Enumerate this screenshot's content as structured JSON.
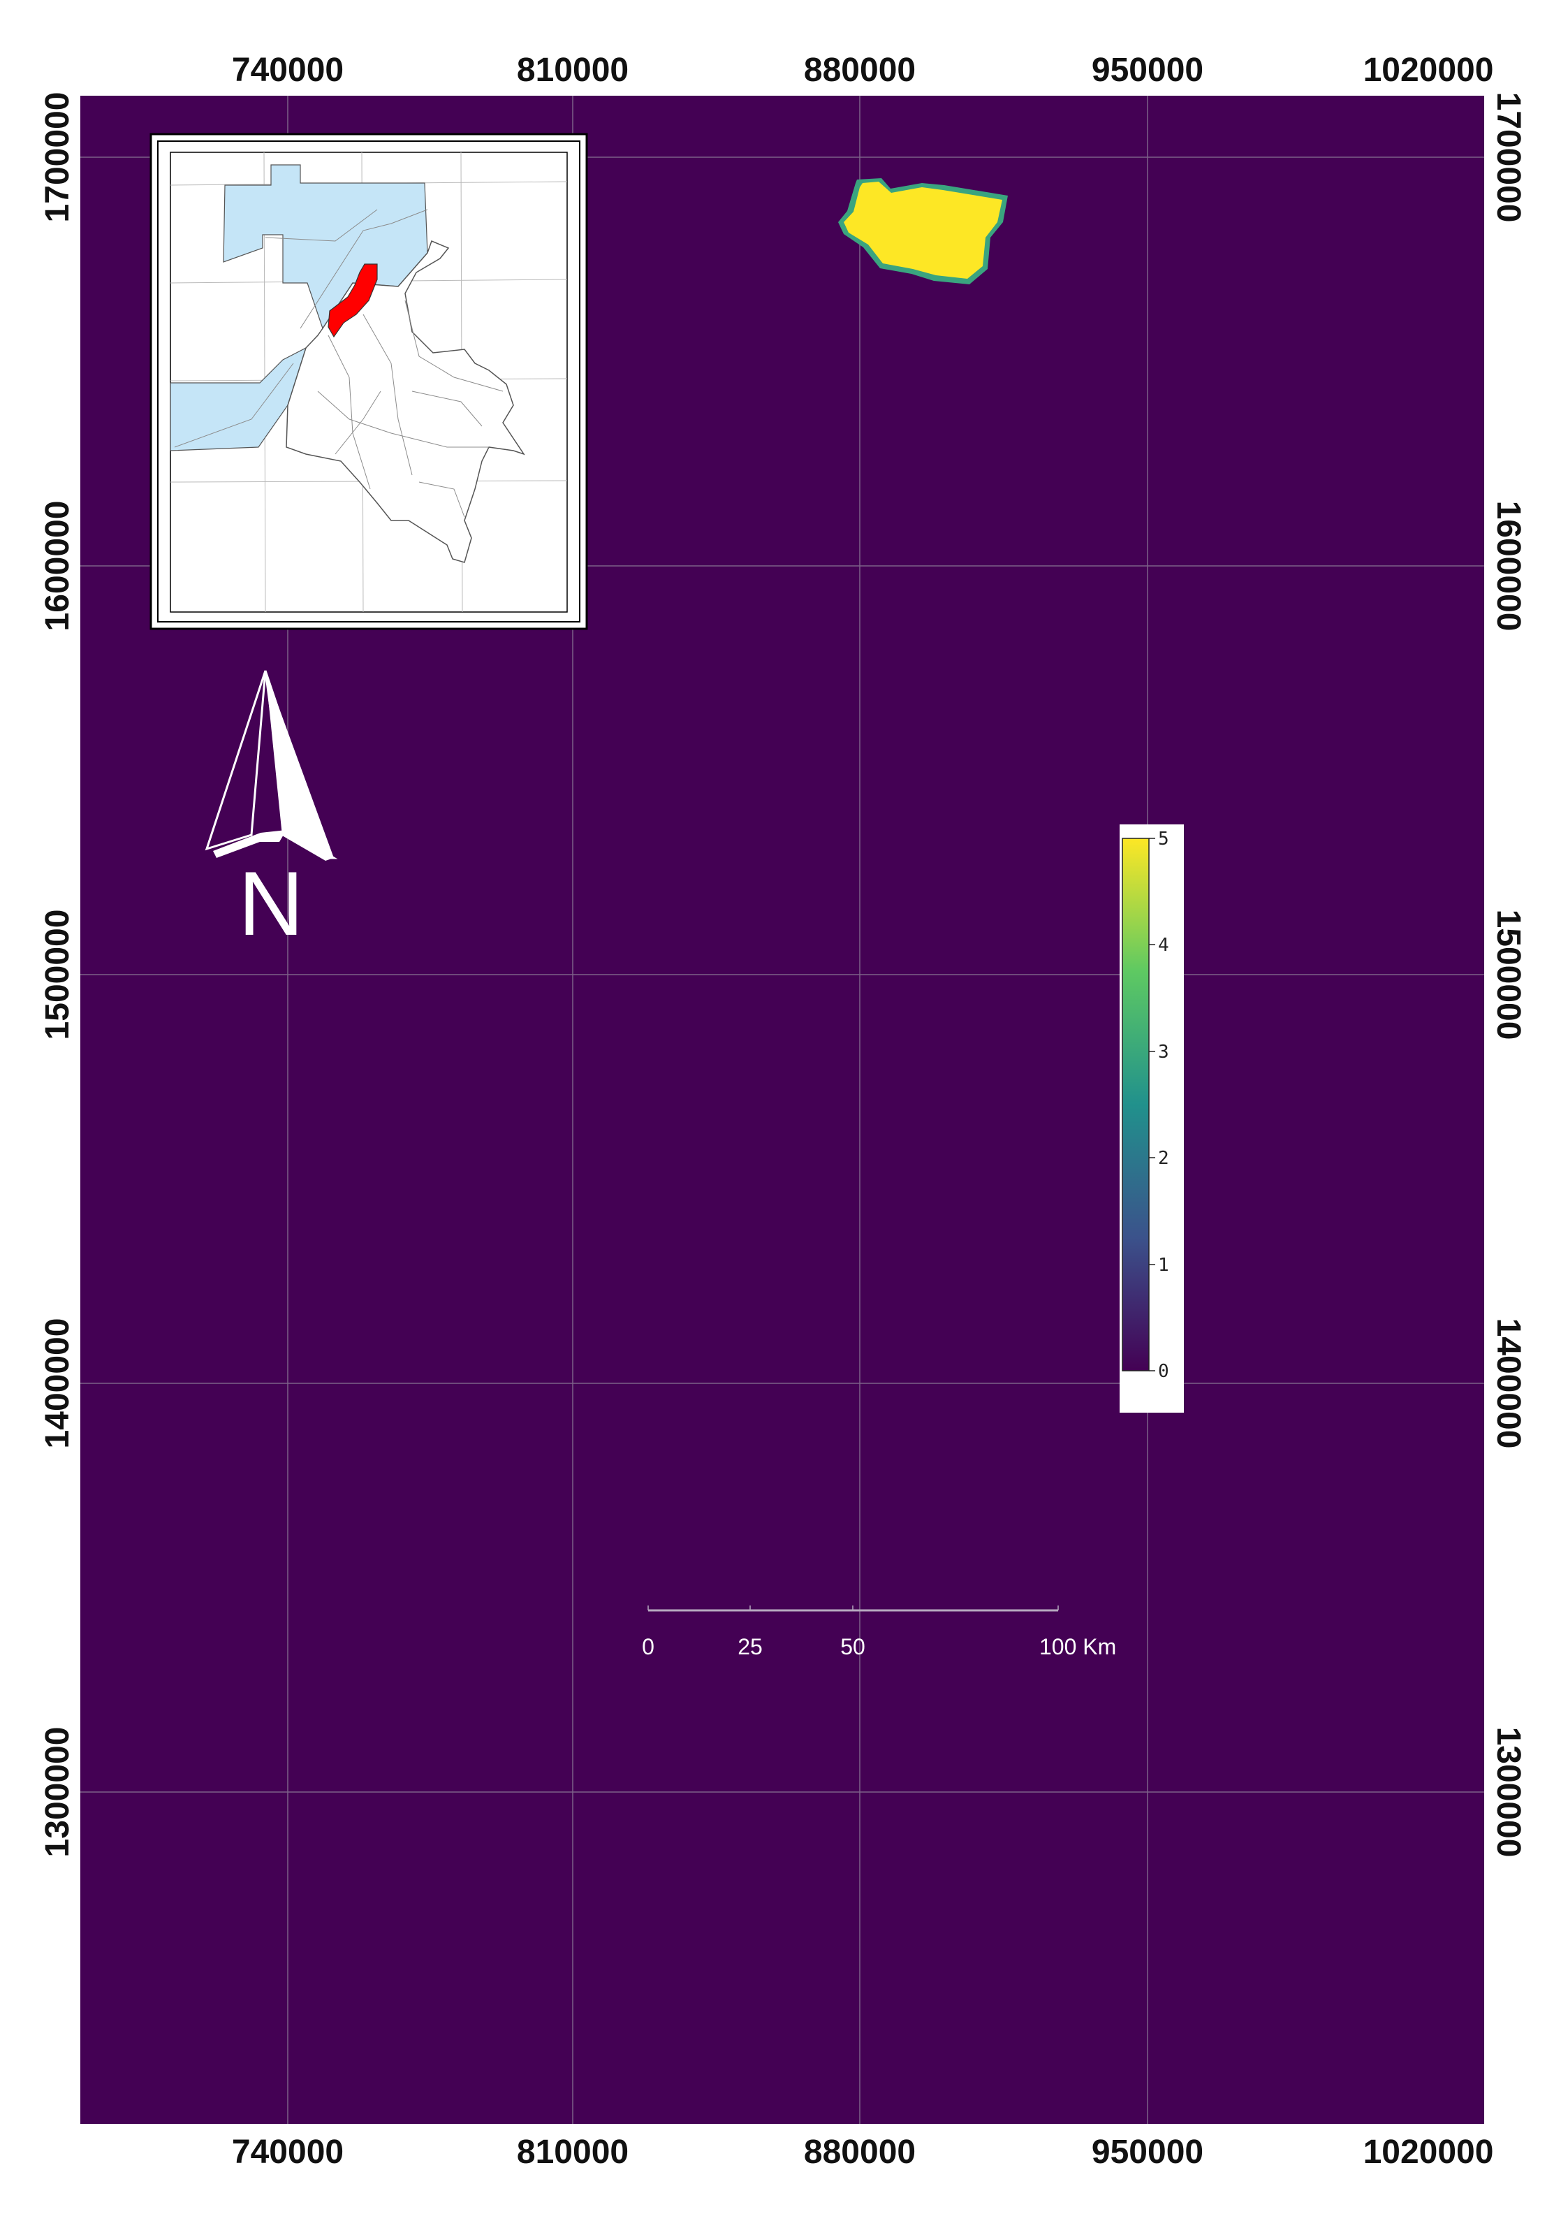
{
  "map": {
    "background_color": "#440154",
    "grid_color": "#8c7a96",
    "x_ticks": [
      "740000",
      "810000",
      "880000",
      "950000",
      "1020000"
    ],
    "y_ticks": [
      "1700000",
      "1600000",
      "1500000",
      "1400000",
      "1300000"
    ]
  },
  "legend": {
    "colormap": "viridis",
    "min": 0,
    "max": 5,
    "ticks": [
      "5",
      "4",
      "3",
      "2",
      "1",
      "0"
    ],
    "colors": [
      "#440154",
      "#3b528b",
      "#21918c",
      "#5ec962",
      "#fde725"
    ]
  },
  "scale_bar": {
    "labels": [
      "0",
      "25",
      "50",
      "100 Km"
    ]
  },
  "north_arrow": {
    "label": "N"
  },
  "inset": {
    "highlight_color": "#ff0000",
    "sea_color": "#c5e5f7",
    "land_color": "#ffffff"
  },
  "feature": {
    "value": 5,
    "color": "#fde725",
    "edge_color": "#3aa47f"
  }
}
